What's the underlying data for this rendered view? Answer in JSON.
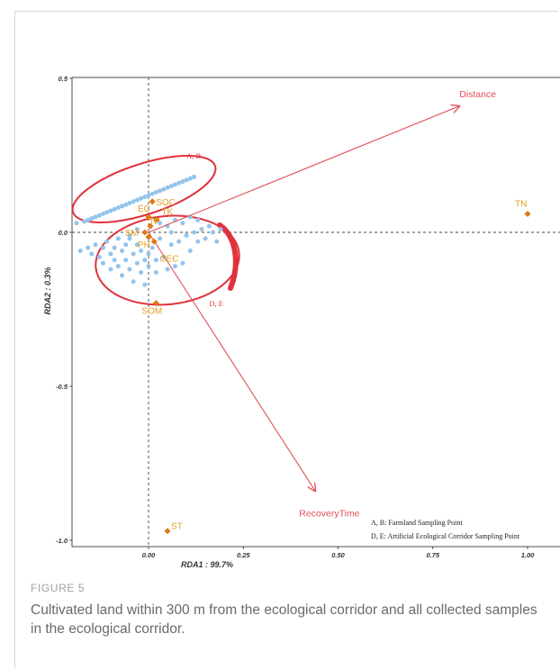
{
  "chart_data": {
    "type": "scatter",
    "xlabel": "RDA1 : 99.7%",
    "ylabel": "RDA2 : 0.3%",
    "xlim": [
      -0.22,
      1.04
    ],
    "ylim": [
      -1.04,
      0.51
    ],
    "x_ticks": [
      0.0,
      0.25,
      0.5,
      0.75,
      1.0
    ],
    "x_tick_labels": [
      "0.00",
      "0.25",
      "0.50",
      "0.75",
      "1.00"
    ],
    "y_ticks": [
      0.5,
      0.0,
      -0.5,
      -1.0
    ],
    "y_tick_labels": [
      "0.5",
      "0.0",
      "-0.5",
      "-1.0"
    ],
    "grid": false,
    "reference_lines": {
      "x": 0,
      "y": 0
    },
    "environmental_arrows": [
      {
        "label": "Distance",
        "x": 0.82,
        "y": 0.41
      },
      {
        "label": "RecoveryTime",
        "x": 0.44,
        "y": -0.84
      }
    ],
    "soil_properties": [
      {
        "label": "SOC",
        "x": 0.01,
        "y": 0.1
      },
      {
        "label": "EC",
        "x": 0.0,
        "y": 0.05
      },
      {
        "label": "TK",
        "x": 0.02,
        "y": 0.04
      },
      {
        "label": "TP",
        "x": 0.005,
        "y": 0.02
      },
      {
        "label": "SM",
        "x": -0.01,
        "y": 0.0
      },
      {
        "label": "PH",
        "x": 0.0,
        "y": -0.015
      },
      {
        "label": "CEC",
        "x": 0.015,
        "y": -0.03
      },
      {
        "label": "SOM",
        "x": 0.02,
        "y": -0.23
      },
      {
        "label": "TN",
        "x": 1.0,
        "y": 0.06
      },
      {
        "label": "ST",
        "x": 0.05,
        "y": -0.97
      }
    ],
    "sample_points": [
      [
        -0.19,
        0.03
      ],
      [
        -0.17,
        0.035
      ],
      [
        -0.16,
        0.04
      ],
      [
        -0.15,
        0.045
      ],
      [
        -0.14,
        0.05
      ],
      [
        -0.13,
        0.055
      ],
      [
        -0.12,
        0.06
      ],
      [
        -0.11,
        0.065
      ],
      [
        -0.1,
        0.07
      ],
      [
        -0.09,
        0.075
      ],
      [
        -0.08,
        0.08
      ],
      [
        -0.07,
        0.085
      ],
      [
        -0.06,
        0.09
      ],
      [
        -0.05,
        0.095
      ],
      [
        -0.04,
        0.1
      ],
      [
        -0.03,
        0.105
      ],
      [
        -0.02,
        0.11
      ],
      [
        -0.01,
        0.115
      ],
      [
        0.0,
        0.12
      ],
      [
        0.01,
        0.125
      ],
      [
        0.02,
        0.13
      ],
      [
        0.03,
        0.135
      ],
      [
        0.04,
        0.14
      ],
      [
        0.05,
        0.145
      ],
      [
        0.06,
        0.15
      ],
      [
        0.07,
        0.155
      ],
      [
        0.08,
        0.16
      ],
      [
        0.09,
        0.165
      ],
      [
        0.1,
        0.17
      ],
      [
        0.11,
        0.175
      ],
      [
        0.12,
        0.18
      ],
      [
        -0.18,
        -0.06
      ],
      [
        -0.16,
        -0.05
      ],
      [
        -0.15,
        -0.07
      ],
      [
        -0.14,
        -0.04
      ],
      [
        -0.13,
        -0.08
      ],
      [
        -0.12,
        -0.05
      ],
      [
        -0.12,
        -0.1
      ],
      [
        -0.11,
        -0.03
      ],
      [
        -0.1,
        -0.07
      ],
      [
        -0.1,
        -0.12
      ],
      [
        -0.09,
        -0.05
      ],
      [
        -0.09,
        -0.09
      ],
      [
        -0.08,
        -0.02
      ],
      [
        -0.08,
        -0.11
      ],
      [
        -0.07,
        -0.06
      ],
      [
        -0.07,
        -0.14
      ],
      [
        -0.06,
        -0.04
      ],
      [
        -0.06,
        -0.09
      ],
      [
        -0.05,
        -0.12
      ],
      [
        -0.05,
        -0.02
      ],
      [
        -0.04,
        -0.07
      ],
      [
        -0.04,
        -0.16
      ],
      [
        -0.03,
        -0.1
      ],
      [
        -0.03,
        -0.04
      ],
      [
        -0.02,
        -0.13
      ],
      [
        -0.02,
        -0.06
      ],
      [
        -0.01,
        -0.09
      ],
      [
        -0.01,
        -0.17
      ],
      [
        0.0,
        -0.11
      ],
      [
        0.0,
        -0.07
      ],
      [
        0.01,
        -0.05
      ],
      [
        0.02,
        -0.09
      ],
      [
        0.02,
        -0.13
      ],
      [
        0.03,
        -0.02
      ],
      [
        0.04,
        -0.08
      ],
      [
        0.05,
        -0.12
      ],
      [
        0.06,
        -0.04
      ],
      [
        0.07,
        -0.11
      ],
      [
        0.08,
        -0.03
      ],
      [
        0.09,
        -0.1
      ],
      [
        0.1,
        -0.01
      ],
      [
        0.11,
        -0.06
      ],
      [
        0.12,
        0.0
      ],
      [
        0.13,
        -0.03
      ],
      [
        0.14,
        0.01
      ],
      [
        0.15,
        -0.02
      ],
      [
        0.16,
        0.02
      ],
      [
        0.17,
        0.0
      ],
      [
        0.18,
        -0.03
      ],
      [
        0.19,
        0.01
      ],
      [
        0.03,
        0.03
      ],
      [
        0.05,
        0.02
      ],
      [
        0.07,
        0.04
      ],
      [
        0.09,
        0.03
      ],
      [
        0.11,
        0.05
      ],
      [
        0.13,
        0.04
      ],
      [
        -0.03,
        0.01
      ],
      [
        -0.05,
        -0.01
      ],
      [
        0.06,
        0.0
      ]
    ],
    "group_labels": [
      {
        "label": "A, B",
        "x": 0.1,
        "y": 0.24
      },
      {
        "label": "D, E",
        "x": 0.16,
        "y": -0.24
      }
    ],
    "legend": {
      "placement": "bottom-right",
      "entries": [
        "A, B: Farmland Sampling Point",
        "D, E: Artificial Ecological Corridor Sampling Point"
      ]
    },
    "colors": {
      "arrow": "#e0505a",
      "ellipse": "#e0323c",
      "property_label": "#e6a020",
      "property_point": "#e07810",
      "sample_point": "#93c4ec",
      "axis_text": "#333333"
    }
  },
  "caption": {
    "label": "FIGURE 5",
    "text": "Cultivated land within 300 m from the ecological corridor and all collected samples in the ecological corridor."
  }
}
